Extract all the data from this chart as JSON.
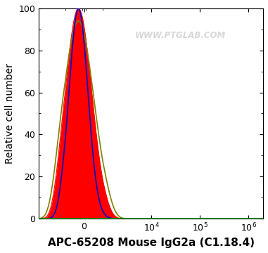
{
  "xlabel": "APC-65208 Mouse IgG2a (C1.18.4)",
  "ylabel": "Relative cell number",
  "ylim": [
    0,
    100
  ],
  "watermark": "WWW.PTGLAB.COM",
  "red_color": "#FF0000",
  "blue_color": "#0000CC",
  "olive_color": "#808000",
  "green_color": "#00CC00",
  "background_color": "#FFFFFF",
  "xlabel_fontsize": 11,
  "ylabel_fontsize": 10,
  "tick_fontsize": 9,
  "linthresh": 1000,
  "xlim_left": -3500,
  "xlim_right": 2000000
}
